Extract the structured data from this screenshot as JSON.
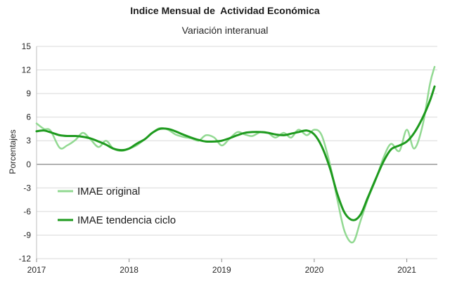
{
  "chart_data": {
    "type": "line",
    "title": "Indice Mensual de  Actividad Económica",
    "subtitle": "Variación interanual",
    "ylabel": "Porcentajes",
    "xlabel": "",
    "ylim": [
      -12,
      15
    ],
    "xlim": [
      2017.0,
      2021.33
    ],
    "yticks": [
      15,
      12,
      9,
      6,
      3,
      0,
      -3,
      -6,
      -9,
      -12
    ],
    "xticks": [
      2017,
      2018,
      2019,
      2020,
      2021
    ],
    "grid": "horizontal",
    "legend_position": "bottom-left",
    "series": [
      {
        "name": "IMAE original",
        "color": "#92d992",
        "points": [
          [
            2017.0,
            5.2
          ],
          [
            2017.08,
            4.5
          ],
          [
            2017.15,
            4.3
          ],
          [
            2017.25,
            2.1
          ],
          [
            2017.33,
            2.4
          ],
          [
            2017.42,
            3.1
          ],
          [
            2017.5,
            4.0
          ],
          [
            2017.58,
            3.2
          ],
          [
            2017.67,
            2.2
          ],
          [
            2017.75,
            3.0
          ],
          [
            2017.83,
            2.0
          ],
          [
            2017.92,
            1.7
          ],
          [
            2018.0,
            2.0
          ],
          [
            2018.08,
            2.4
          ],
          [
            2018.17,
            3.2
          ],
          [
            2018.25,
            4.0
          ],
          [
            2018.33,
            4.6
          ],
          [
            2018.42,
            4.4
          ],
          [
            2018.5,
            3.8
          ],
          [
            2018.58,
            3.5
          ],
          [
            2018.67,
            3.3
          ],
          [
            2018.75,
            3.0
          ],
          [
            2018.83,
            3.7
          ],
          [
            2018.92,
            3.4
          ],
          [
            2019.0,
            2.4
          ],
          [
            2019.08,
            3.2
          ],
          [
            2019.17,
            4.1
          ],
          [
            2019.25,
            3.8
          ],
          [
            2019.33,
            3.6
          ],
          [
            2019.42,
            4.1
          ],
          [
            2019.5,
            4.0
          ],
          [
            2019.58,
            3.4
          ],
          [
            2019.67,
            4.0
          ],
          [
            2019.75,
            3.4
          ],
          [
            2019.83,
            4.4
          ],
          [
            2019.92,
            3.7
          ],
          [
            2020.0,
            4.4
          ],
          [
            2020.08,
            3.7
          ],
          [
            2020.17,
            0.0
          ],
          [
            2020.25,
            -4.5
          ],
          [
            2020.33,
            -8.6
          ],
          [
            2020.42,
            -9.9
          ],
          [
            2020.5,
            -7.2
          ],
          [
            2020.58,
            -4.4
          ],
          [
            2020.67,
            -1.8
          ],
          [
            2020.75,
            0.9
          ],
          [
            2020.83,
            2.6
          ],
          [
            2020.92,
            1.7
          ],
          [
            2021.0,
            4.4
          ],
          [
            2021.08,
            2.0
          ],
          [
            2021.17,
            4.9
          ],
          [
            2021.25,
            10.2
          ],
          [
            2021.3,
            12.4
          ]
        ]
      },
      {
        "name": "IMAE tendencia ciclo",
        "color": "#1e9a1e",
        "points": [
          [
            2017.0,
            4.2
          ],
          [
            2017.08,
            4.3
          ],
          [
            2017.17,
            4.0
          ],
          [
            2017.25,
            3.7
          ],
          [
            2017.33,
            3.6
          ],
          [
            2017.42,
            3.6
          ],
          [
            2017.5,
            3.5
          ],
          [
            2017.58,
            3.3
          ],
          [
            2017.67,
            2.9
          ],
          [
            2017.75,
            2.5
          ],
          [
            2017.83,
            2.0
          ],
          [
            2017.92,
            1.8
          ],
          [
            2018.0,
            2.0
          ],
          [
            2018.08,
            2.6
          ],
          [
            2018.17,
            3.2
          ],
          [
            2018.25,
            4.0
          ],
          [
            2018.33,
            4.5
          ],
          [
            2018.42,
            4.5
          ],
          [
            2018.5,
            4.2
          ],
          [
            2018.58,
            3.8
          ],
          [
            2018.67,
            3.4
          ],
          [
            2018.75,
            3.1
          ],
          [
            2018.83,
            2.9
          ],
          [
            2018.92,
            2.9
          ],
          [
            2019.0,
            3.0
          ],
          [
            2019.08,
            3.3
          ],
          [
            2019.17,
            3.7
          ],
          [
            2019.25,
            4.0
          ],
          [
            2019.33,
            4.1
          ],
          [
            2019.42,
            4.1
          ],
          [
            2019.5,
            4.0
          ],
          [
            2019.58,
            3.8
          ],
          [
            2019.67,
            3.7
          ],
          [
            2019.75,
            3.9
          ],
          [
            2019.83,
            4.1
          ],
          [
            2019.92,
            4.3
          ],
          [
            2020.0,
            3.8
          ],
          [
            2020.08,
            2.3
          ],
          [
            2020.17,
            -0.5
          ],
          [
            2020.25,
            -3.8
          ],
          [
            2020.33,
            -6.2
          ],
          [
            2020.42,
            -7.1
          ],
          [
            2020.5,
            -6.4
          ],
          [
            2020.58,
            -4.2
          ],
          [
            2020.67,
            -1.7
          ],
          [
            2020.75,
            0.4
          ],
          [
            2020.83,
            1.9
          ],
          [
            2020.92,
            2.4
          ],
          [
            2021.0,
            2.9
          ],
          [
            2021.08,
            4.0
          ],
          [
            2021.17,
            5.9
          ],
          [
            2021.25,
            8.1
          ],
          [
            2021.3,
            9.9
          ]
        ]
      }
    ]
  }
}
